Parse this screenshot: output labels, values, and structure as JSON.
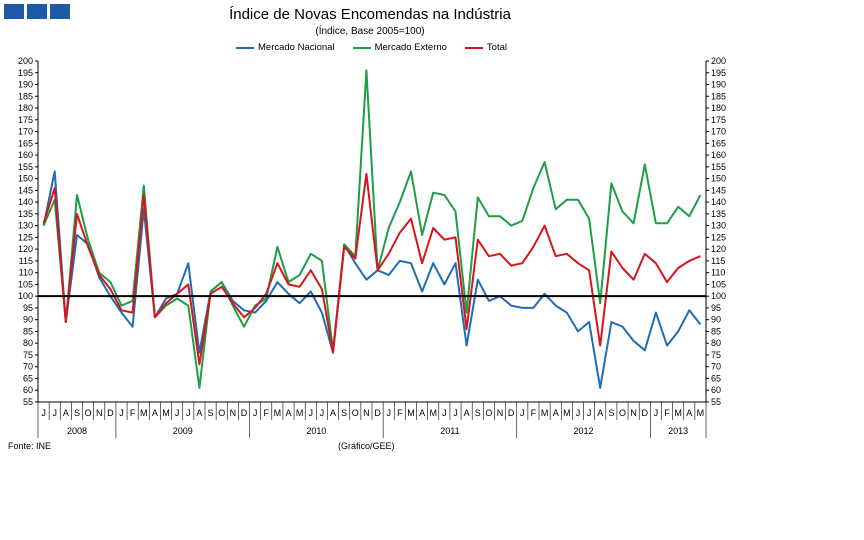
{
  "header": {
    "title": "Índice de Novas Encomendas na Indústria",
    "subtitle": "(Índice,  Base 2005=100)"
  },
  "footer": {
    "source": "Fonte: INE",
    "credit": "(Gráfico/GEE)"
  },
  "colors": {
    "logo": "#1f5aa6",
    "nacional": "#1f6db4",
    "externo": "#1e9e46",
    "total": "#d9141a",
    "baseline": "#000000",
    "axis": "#000000"
  },
  "chart_data": {
    "type": "line",
    "title": "Índice de Novas Encomendas na Indústria",
    "subtitle": "(Índice,  Base 2005=100)",
    "ylim": [
      55,
      200
    ],
    "yticks": [
      55,
      60,
      65,
      70,
      75,
      80,
      85,
      90,
      95,
      100,
      105,
      110,
      115,
      120,
      125,
      130,
      135,
      140,
      145,
      150,
      155,
      160,
      165,
      170,
      175,
      180,
      185,
      190,
      195,
      200
    ],
    "reference_line": 100,
    "legend_position": "top",
    "month_labels": [
      "J",
      "J",
      "A",
      "S",
      "O",
      "N",
      "D",
      "J",
      "F",
      "M",
      "A",
      "M",
      "J",
      "J",
      "A",
      "S",
      "O",
      "N",
      "D",
      "J",
      "F",
      "M",
      "A",
      "M",
      "J",
      "J",
      "A",
      "S",
      "O",
      "N",
      "D",
      "J",
      "F",
      "M",
      "A",
      "M",
      "J",
      "J",
      "A",
      "S",
      "O",
      "N",
      "D",
      "J",
      "F",
      "M",
      "A",
      "M",
      "J",
      "J",
      "A",
      "S",
      "O",
      "N",
      "D",
      "J",
      "F",
      "M",
      "A",
      "M"
    ],
    "year_labels": [
      {
        "label": "2008",
        "start": 0,
        "end": 7
      },
      {
        "label": "2009",
        "start": 7,
        "end": 19
      },
      {
        "label": "2010",
        "start": 19,
        "end": 31
      },
      {
        "label": "2011",
        "start": 31,
        "end": 43
      },
      {
        "label": "2012",
        "start": 43,
        "end": 55
      },
      {
        "label": "2013",
        "start": 55,
        "end": 60
      }
    ],
    "series": [
      {
        "name": "Mercado Nacional",
        "color_key": "nacional",
        "values": [
          130,
          153,
          89,
          126,
          122,
          108,
          100,
          93,
          87,
          137,
          91,
          99,
          101,
          114,
          76,
          102,
          106,
          98,
          94,
          93,
          98,
          106,
          101,
          97,
          102,
          93,
          76,
          122,
          114,
          107,
          111,
          109,
          115,
          114,
          102,
          114,
          105,
          114,
          79,
          107,
          98,
          100,
          96,
          95,
          95,
          101,
          96,
          93,
          85,
          89,
          61,
          89,
          87,
          81,
          77,
          93,
          79,
          85,
          94,
          88
        ]
      },
      {
        "name": "Mercado Externo",
        "color_key": "externo",
        "values": [
          130,
          141,
          89,
          143,
          124,
          110,
          106,
          96,
          98,
          147,
          91,
          96,
          99,
          96,
          61,
          102,
          106,
          96,
          87,
          96,
          99,
          121,
          106,
          109,
          118,
          115,
          77,
          122,
          117,
          196,
          111,
          129,
          140,
          153,
          126,
          144,
          143,
          136,
          93,
          142,
          134,
          134,
          130,
          132,
          146,
          157,
          137,
          141,
          141,
          133,
          97,
          148,
          136,
          131,
          156,
          131,
          131,
          138,
          134,
          143
        ]
      },
      {
        "name": "Total",
        "color_key": "total",
        "values": [
          131,
          146,
          89,
          135,
          121,
          109,
          103,
          94,
          93,
          143,
          91,
          97,
          101,
          105,
          71,
          101,
          104,
          97,
          91,
          95,
          101,
          114,
          105,
          104,
          111,
          103,
          76,
          121,
          116,
          152,
          111,
          118,
          127,
          133,
          114,
          129,
          124,
          125,
          86,
          124,
          117,
          118,
          113,
          114,
          121,
          130,
          117,
          118,
          114,
          111,
          79,
          119,
          112,
          107,
          118,
          114,
          106,
          112,
          115,
          117
        ]
      }
    ]
  }
}
